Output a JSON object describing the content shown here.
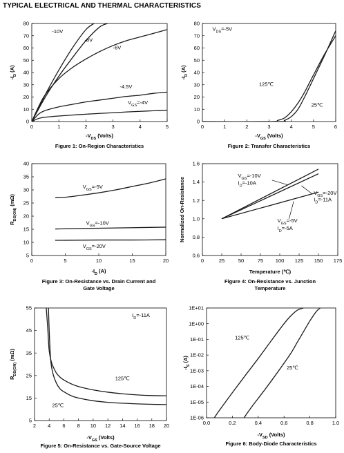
{
  "page": {
    "title": "TYPICAL ELECTRICAL AND THERMAL CHARACTERISTICS"
  },
  "chart_data": [
    {
      "id": "fig1",
      "type": "line",
      "caption": "Figure 1: On-Region Characteristics",
      "xlabel": "-V_DS (Volts)",
      "ylabel": "-I_D (A)",
      "xlim": [
        0,
        5
      ],
      "ylim": [
        0,
        80
      ],
      "xticks": [
        "0",
        "1",
        "2",
        "3",
        "4",
        "5"
      ],
      "yticks": [
        "0",
        "10",
        "20",
        "30",
        "40",
        "50",
        "60",
        "70",
        "80"
      ],
      "series": [
        {
          "name": "-10V",
          "x": [
            0,
            0.5,
            1,
            1.5,
            2,
            2.3
          ],
          "y": [
            0,
            22,
            42,
            60,
            75,
            80
          ]
        },
        {
          "name": "-8V",
          "x": [
            0,
            0.5,
            1,
            1.5,
            2,
            2.5,
            2.8
          ],
          "y": [
            0,
            20,
            37,
            52,
            66,
            77,
            80
          ]
        },
        {
          "name": "-6V",
          "x": [
            0,
            0.25,
            0.5,
            1,
            1.5,
            2,
            2.5,
            3,
            3.5,
            4,
            4.5,
            5
          ],
          "y": [
            0,
            12,
            22,
            35,
            44,
            51,
            57,
            62,
            66,
            69,
            72,
            75
          ]
        },
        {
          "name": "-4.5V",
          "x": [
            0,
            0.25,
            0.5,
            1,
            1.5,
            2,
            2.5,
            3,
            3.5,
            4,
            4.5,
            5
          ],
          "y": [
            0,
            6,
            9,
            12,
            14,
            16,
            17.5,
            19,
            20.5,
            21.5,
            23,
            24
          ]
        },
        {
          "name": "V_GS=-4V",
          "x": [
            0,
            0.25,
            0.5,
            1,
            1.5,
            2,
            2.5,
            3,
            3.5,
            4,
            4.5,
            5
          ],
          "y": [
            0,
            2.5,
            3.5,
            4.5,
            5.3,
            6,
            6.6,
            7.2,
            7.8,
            8.3,
            8.8,
            9.3
          ]
        }
      ],
      "annotations": [
        {
          "text": "-10V",
          "x": 0.75,
          "y": 72
        },
        {
          "text": "-8V",
          "x": 1.95,
          "y": 65
        },
        {
          "text": "-6V",
          "x": 3.0,
          "y": 59
        },
        {
          "text": "-4.5V",
          "x": 3.25,
          "y": 27
        },
        {
          "text": "V_GS=-4V",
          "x": 3.55,
          "y": 14
        }
      ]
    },
    {
      "id": "fig2",
      "type": "line",
      "caption": "Figure 2: Transfer Characteristics",
      "xlabel": "-V_GS (Volts)",
      "ylabel": "-I_D (A)",
      "xlim": [
        0,
        6
      ],
      "ylim": [
        0,
        80
      ],
      "xticks": [
        "0",
        "1",
        "2",
        "3",
        "4",
        "5",
        "6"
      ],
      "yticks": [
        "0",
        "10",
        "20",
        "30",
        "40",
        "50",
        "60",
        "70",
        "80"
      ],
      "series": [
        {
          "name": "125℃",
          "x": [
            0,
            3.0,
            3.4,
            3.7,
            4.0,
            4.3,
            4.6,
            5.0,
            5.5,
            6.0
          ],
          "y": [
            0,
            0,
            1,
            3,
            8,
            15,
            24,
            38,
            55,
            70
          ]
        },
        {
          "name": "25℃",
          "x": [
            0,
            3.4,
            3.7,
            4.0,
            4.3,
            4.6,
            5.0,
            5.5,
            6.0
          ],
          "y": [
            0,
            0,
            1,
            4,
            10,
            20,
            35,
            54,
            74
          ]
        }
      ],
      "annotations": [
        {
          "text": "V_DS=-5V",
          "x": 0.45,
          "y": 74
        },
        {
          "text": "125℃",
          "x": 2.55,
          "y": 29
        },
        {
          "text": "25℃",
          "x": 4.9,
          "y": 12
        }
      ]
    },
    {
      "id": "fig3",
      "type": "line",
      "caption": "Figure 3: On-Resistance vs. Drain Current and",
      "caption2": "Gate Voltage",
      "xlabel": "-I_D (A)",
      "ylabel": "R_DS(ON) (mΩ)",
      "xlim": [
        0,
        20
      ],
      "ylim": [
        5,
        40
      ],
      "xticks": [
        "0",
        "5",
        "10",
        "15",
        "20"
      ],
      "yticks": [
        "5",
        "10",
        "15",
        "20",
        "25",
        "30",
        "35",
        "40"
      ],
      "series": [
        {
          "name": "V_GS=-5V",
          "x": [
            3.5,
            5,
            7.5,
            10,
            12.5,
            15,
            17.5,
            20
          ],
          "y": [
            27,
            27.2,
            28,
            28.9,
            30,
            31.3,
            32.6,
            34.2
          ]
        },
        {
          "name": "V_GS=-10V",
          "x": [
            3.5,
            5,
            10,
            15,
            20
          ],
          "y": [
            15.1,
            15.2,
            15.4,
            15.6,
            15.8
          ]
        },
        {
          "name": "V_GS=-20V",
          "x": [
            3.5,
            5,
            10,
            15,
            20
          ],
          "y": [
            10.8,
            10.8,
            10.9,
            10.9,
            11.0
          ]
        }
      ],
      "annotations": [
        {
          "text": "V_GS=-5V",
          "x": 7.6,
          "y": 30.5
        },
        {
          "text": "V_GS=-10V",
          "x": 8.1,
          "y": 16.7
        },
        {
          "text": "V_GS=-20V",
          "x": 7.6,
          "y": 7.9
        }
      ]
    },
    {
      "id": "fig4",
      "type": "line",
      "caption": "Figure 4: On-Resistance vs. Junction",
      "caption2": "Temperature",
      "xlabel": "Temperature (℃)",
      "ylabel": "Normalized On-Resistance",
      "xlim": [
        0,
        175
      ],
      "ylim": [
        0.6,
        1.6
      ],
      "xticks": [
        "0",
        "25",
        "50",
        "75",
        "100",
        "125",
        "150",
        "175"
      ],
      "yticks": [
        "0.6",
        "0.8",
        "1.0",
        "1.2",
        "1.4",
        "1.6"
      ],
      "series": [
        {
          "name": "V_GS=-10V I_D=-10A",
          "x": [
            25,
            150
          ],
          "y": [
            1.0,
            1.54
          ]
        },
        {
          "name": "V_GS=-20V I_D=-11A",
          "x": [
            25,
            150
          ],
          "y": [
            1.0,
            1.49
          ]
        },
        {
          "name": "V_GS=-5V I_D=-5A",
          "x": [
            25,
            150
          ],
          "y": [
            1.0,
            1.29
          ]
        }
      ],
      "annotations": [
        {
          "text": "V_GS=-10V",
          "x": 46,
          "y": 1.45
        },
        {
          "text": "I_D=-10A",
          "x": 46,
          "y": 1.37
        },
        {
          "text": "V_GS=-20V",
          "x": 144,
          "y": 1.26
        },
        {
          "text": "I_D=-11A",
          "x": 144,
          "y": 1.19
        },
        {
          "text": "V_GS=-5V",
          "x": 97,
          "y": 0.96
        },
        {
          "text": "I_D=-5A",
          "x": 97,
          "y": 0.88
        }
      ]
    },
    {
      "id": "fig5",
      "type": "line",
      "caption": "Figure 5: On-Resistance vs. Gate-Source Voltage",
      "xlabel": "-V_GS (Volts)",
      "ylabel": "R_DS(ON) (mΩ)",
      "xlim": [
        2,
        20
      ],
      "ylim": [
        5,
        55
      ],
      "xticks": [
        "2",
        "4",
        "6",
        "8",
        "10",
        "12",
        "14",
        "16",
        "18",
        "20"
      ],
      "yticks": [
        "5",
        "15",
        "25",
        "35",
        "45",
        "55"
      ],
      "series": [
        {
          "name": "125℃",
          "x": [
            3.6,
            3.8,
            4,
            4.3,
            4.6,
            5,
            5.5,
            6,
            7,
            8,
            10,
            12,
            14,
            16,
            18,
            20
          ],
          "y": [
            55,
            46,
            36,
            31,
            28.5,
            26,
            24.2,
            23,
            21.3,
            20.1,
            18.6,
            17.6,
            16.9,
            16.4,
            16.1,
            16
          ]
        },
        {
          "name": "25℃",
          "x": [
            3.9,
            4,
            4.2,
            4.5,
            5,
            5.5,
            6,
            7,
            8,
            10,
            12,
            14,
            16,
            18,
            20
          ],
          "y": [
            55,
            45,
            32,
            26,
            21.5,
            19,
            17.8,
            16,
            15,
            13.8,
            13.1,
            12.7,
            12.4,
            12.2,
            12.1
          ]
        }
      ],
      "annotations": [
        {
          "text": "I_D=-11A",
          "x": 15.3,
          "y": 51
        },
        {
          "text": "125℃",
          "x": 13.0,
          "y": 23
        },
        {
          "text": "25℃",
          "x": 4.4,
          "y": 11
        }
      ]
    },
    {
      "id": "fig6",
      "type": "line",
      "caption": "Figure 6: Body-Diode Characteristics",
      "xlabel": "-V_SD (Volts)",
      "ylabel": "-I_S (A)",
      "log_y": true,
      "xlim": [
        0,
        1.0
      ],
      "ylim": [
        1e-06,
        10
      ],
      "xticks": [
        "0.0",
        "0.2",
        "0.4",
        "0.6",
        "0.8",
        "1.0"
      ],
      "yticks": [
        "1E-06",
        "1E-05",
        "1E-04",
        "1E-03",
        "1E-02",
        "1E-01",
        "1E+00",
        "1E+01"
      ],
      "series": [
        {
          "name": "125℃",
          "x": [
            0.06,
            0.1,
            0.2,
            0.3,
            0.4,
            0.5,
            0.6,
            0.65,
            0.7,
            0.75
          ],
          "y": [
            1e-06,
            3e-06,
            4e-05,
            0.0005,
            0.006,
            0.08,
            1,
            3,
            7,
            10
          ]
        },
        {
          "name": "25℃",
          "x": [
            0.29,
            0.35,
            0.45,
            0.55,
            0.65,
            0.7,
            0.75,
            0.8,
            0.85,
            0.88
          ],
          "y": [
            1e-06,
            5e-06,
            6e-05,
            0.0008,
            0.012,
            0.06,
            0.3,
            1.5,
            6,
            10
          ]
        }
      ],
      "annotations": [
        {
          "text": "125℃",
          "x": 0.22,
          "y": 0.1
        },
        {
          "text": "25℃",
          "x": 0.62,
          "y": 0.0012
        }
      ]
    }
  ]
}
